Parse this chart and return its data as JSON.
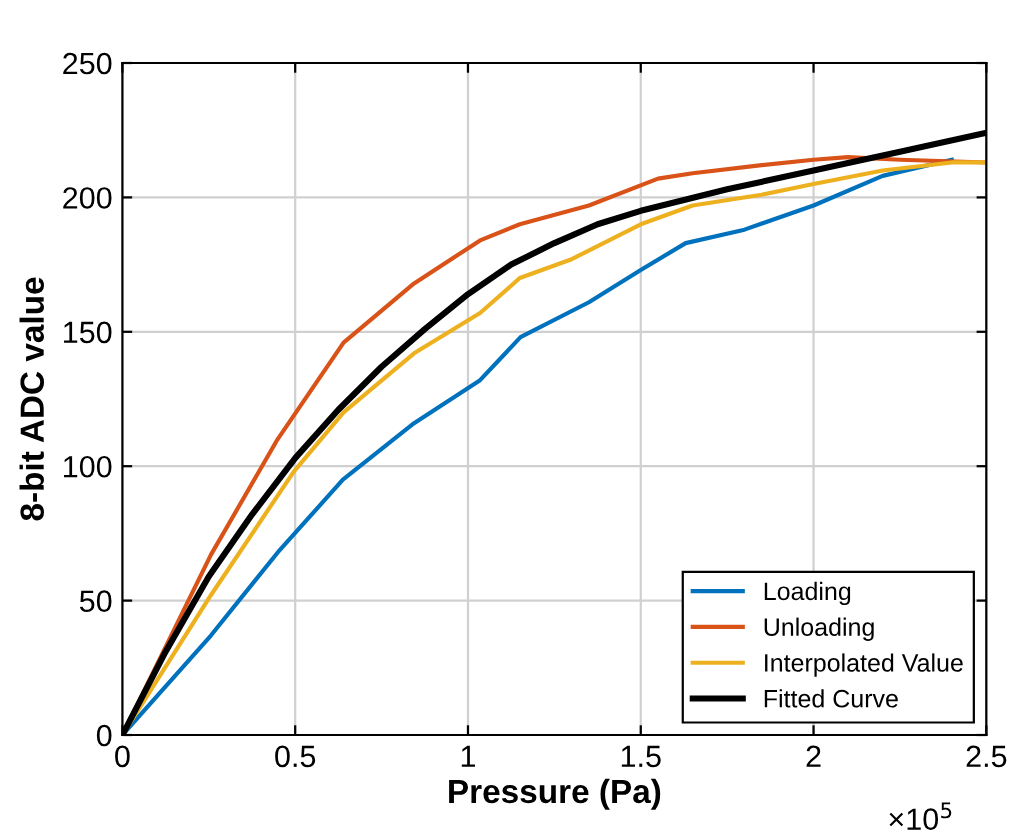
{
  "chart_data": {
    "type": "line",
    "xlabel": "Pressure (Pa)",
    "ylabel": "8-bit ADC value",
    "annotations": [
      "×10$^{5}$"
    ],
    "xlim": [
      0,
      2.5
    ],
    "ylim": [
      0,
      250
    ],
    "xticks": [
      0,
      0.5,
      1,
      1.5,
      2,
      2.5
    ],
    "yticks": [
      0,
      50,
      100,
      150,
      200,
      250
    ],
    "grid": true,
    "legend": "bottom right",
    "series": [
      {
        "name": "Loading",
        "color": "#0072bd",
        "x": [
          0,
          0.256,
          0.45,
          0.638,
          0.844,
          1.035,
          1.152,
          1.35,
          1.5,
          1.63,
          1.8,
          2.0,
          2.2,
          2.4
        ],
        "values": [
          0,
          37,
          68,
          95,
          116,
          132,
          148,
          161,
          173,
          183,
          188,
          197,
          208,
          214
        ]
      },
      {
        "name": "Unloading",
        "color": "#d95319",
        "x": [
          0,
          0.256,
          0.449,
          0.64,
          0.844,
          1.035,
          1.15,
          1.35,
          1.55,
          1.65,
          1.85,
          2.0,
          2.1,
          2.25,
          2.5
        ],
        "values": [
          0,
          67,
          110,
          146,
          168,
          184,
          190,
          197,
          207,
          209,
          212,
          214,
          215,
          214,
          213
        ]
      },
      {
        "name": "Interpolated Value",
        "color": "#edb120",
        "x": [
          0,
          0.256,
          0.496,
          0.64,
          0.844,
          1.035,
          1.15,
          1.3,
          1.5,
          1.65,
          1.85,
          2.0,
          2.2,
          2.4,
          2.5
        ],
        "values": [
          0,
          52,
          98,
          120,
          142,
          157,
          170,
          177,
          190,
          197,
          201,
          205,
          210,
          213,
          213
        ]
      },
      {
        "name": "Fitted Curve",
        "color": "#000000",
        "x": [
          0,
          0.125,
          0.25,
          0.375,
          0.5,
          0.625,
          0.75,
          0.875,
          1.0,
          1.125,
          1.25,
          1.375,
          1.5,
          1.75,
          2.0,
          2.25,
          2.5
        ],
        "values": [
          0,
          31,
          59,
          82,
          103,
          121,
          137,
          151,
          164,
          175,
          183,
          190,
          195,
          203,
          210,
          217,
          224
        ]
      }
    ]
  }
}
